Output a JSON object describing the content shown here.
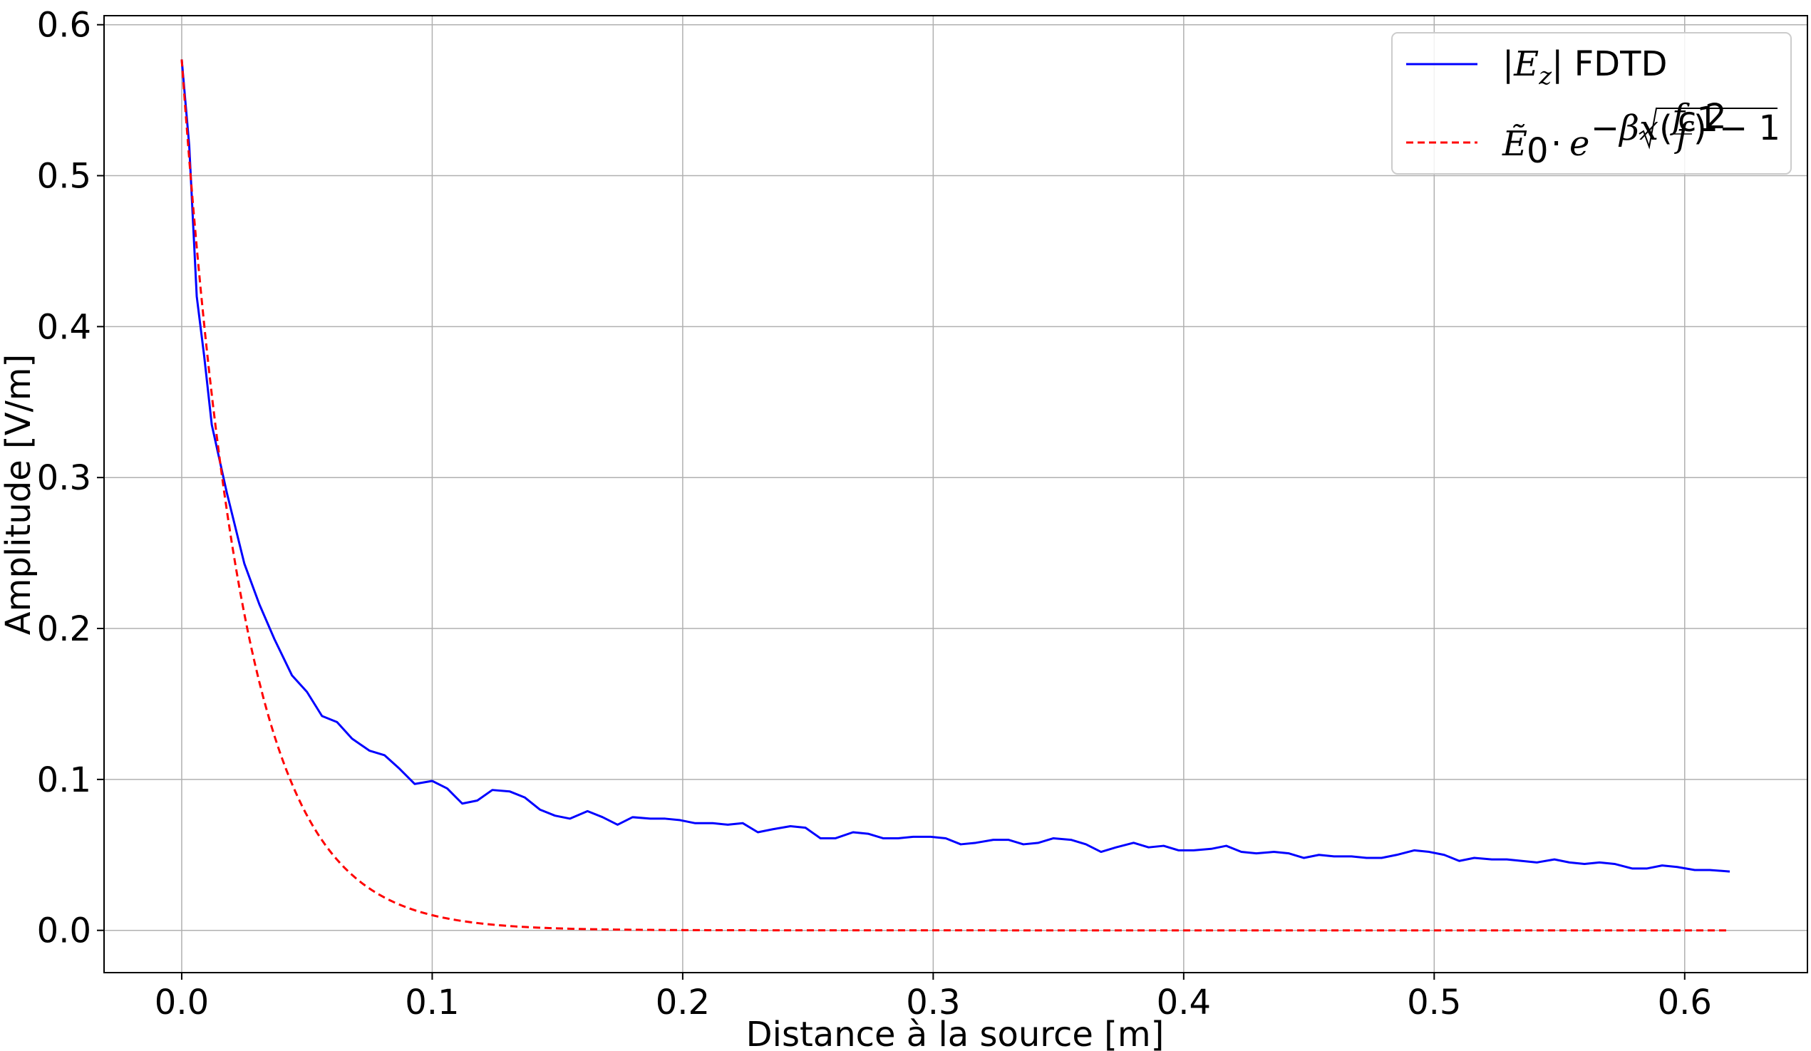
{
  "chart_data": {
    "type": "line",
    "xlabel": "Distance à la source [m]",
    "ylabel": "Amplitude [V/m]",
    "xlim": [
      -0.031,
      0.649
    ],
    "ylim": [
      -0.028,
      0.606
    ],
    "grid": true,
    "legend_position": "top-right",
    "x_ticks": [
      0.0,
      0.1,
      0.2,
      0.3,
      0.4,
      0.5,
      0.6
    ],
    "x_tick_labels": [
      "0.0",
      "0.1",
      "0.2",
      "0.3",
      "0.4",
      "0.5",
      "0.6"
    ],
    "y_ticks": [
      0.0,
      0.1,
      0.2,
      0.3,
      0.4,
      0.5,
      0.6
    ],
    "y_tick_labels": [
      "0.0",
      "0.1",
      "0.2",
      "0.3",
      "0.4",
      "0.5",
      "0.6"
    ],
    "series": [
      {
        "name": "|Ez| FDTD",
        "color": "#0000ff",
        "style": "solid",
        "x": [
          0.0,
          0.003,
          0.006,
          0.009,
          0.012,
          0.018,
          0.025,
          0.031,
          0.037,
          0.044,
          0.05,
          0.056,
          0.062,
          0.068,
          0.075,
          0.081,
          0.087,
          0.093,
          0.1,
          0.106,
          0.112,
          0.118,
          0.124,
          0.131,
          0.137,
          0.143,
          0.149,
          0.155,
          0.162,
          0.168,
          0.174,
          0.18,
          0.187,
          0.193,
          0.199,
          0.205,
          0.212,
          0.218,
          0.224,
          0.23,
          0.236,
          0.243,
          0.249,
          0.255,
          0.261,
          0.268,
          0.274,
          0.28,
          0.286,
          0.292,
          0.299,
          0.305,
          0.311,
          0.317,
          0.324,
          0.33,
          0.336,
          0.342,
          0.348,
          0.355,
          0.361,
          0.367,
          0.373,
          0.38,
          0.386,
          0.392,
          0.398,
          0.404,
          0.411,
          0.417,
          0.423,
          0.429,
          0.436,
          0.442,
          0.448,
          0.454,
          0.46,
          0.467,
          0.473,
          0.479,
          0.485,
          0.492,
          0.498,
          0.504,
          0.51,
          0.516,
          0.523,
          0.529,
          0.535,
          0.541,
          0.548,
          0.554,
          0.56,
          0.566,
          0.572,
          0.579,
          0.585,
          0.591,
          0.597,
          0.604,
          0.61,
          0.618
        ],
        "y": [
          0.577,
          0.52,
          0.42,
          0.38,
          0.335,
          0.29,
          0.243,
          0.216,
          0.193,
          0.169,
          0.158,
          0.142,
          0.138,
          0.127,
          0.119,
          0.116,
          0.107,
          0.097,
          0.099,
          0.094,
          0.084,
          0.086,
          0.093,
          0.092,
          0.088,
          0.08,
          0.076,
          0.074,
          0.079,
          0.075,
          0.07,
          0.075,
          0.074,
          0.074,
          0.073,
          0.071,
          0.071,
          0.07,
          0.071,
          0.065,
          0.067,
          0.069,
          0.068,
          0.061,
          0.061,
          0.065,
          0.064,
          0.061,
          0.061,
          0.062,
          0.062,
          0.061,
          0.057,
          0.058,
          0.06,
          0.06,
          0.057,
          0.058,
          0.061,
          0.06,
          0.057,
          0.052,
          0.055,
          0.058,
          0.055,
          0.056,
          0.053,
          0.053,
          0.054,
          0.056,
          0.052,
          0.051,
          0.052,
          0.051,
          0.048,
          0.05,
          0.049,
          0.049,
          0.048,
          0.048,
          0.05,
          0.053,
          0.052,
          0.05,
          0.046,
          0.048,
          0.047,
          0.047,
          0.046,
          0.045,
          0.047,
          0.045,
          0.044,
          0.045,
          0.044,
          0.041,
          0.041,
          0.043,
          0.042,
          0.04,
          0.04,
          0.039
        ]
      },
      {
        "name": "Ẽ0 · e^(−βx√((fc1/f)²−1))",
        "color": "#ff0000",
        "style": "dashed",
        "function": {
          "kind": "exponential_decay",
          "amplitude": 0.577,
          "rate_per_m": 40.5,
          "x_start": 0.0,
          "x_end": 0.618
        }
      }
    ]
  },
  "legend": {
    "entry1": {
      "text_open": "|",
      "text_E": "E",
      "text_sub": "z",
      "text_close": "| FDTD"
    },
    "entry2": {
      "text_E": "Ẽ",
      "text_sub0": "0",
      "text_dot": "·",
      "text_e": "e",
      "text_exp": "−βx",
      "text_fc": "f",
      "text_fc_sub": "c1",
      "text_f": "f",
      "text_sq": "2",
      "text_minus_one": "− 1",
      "text_paren_open": "(",
      "text_paren_close": ")"
    }
  }
}
